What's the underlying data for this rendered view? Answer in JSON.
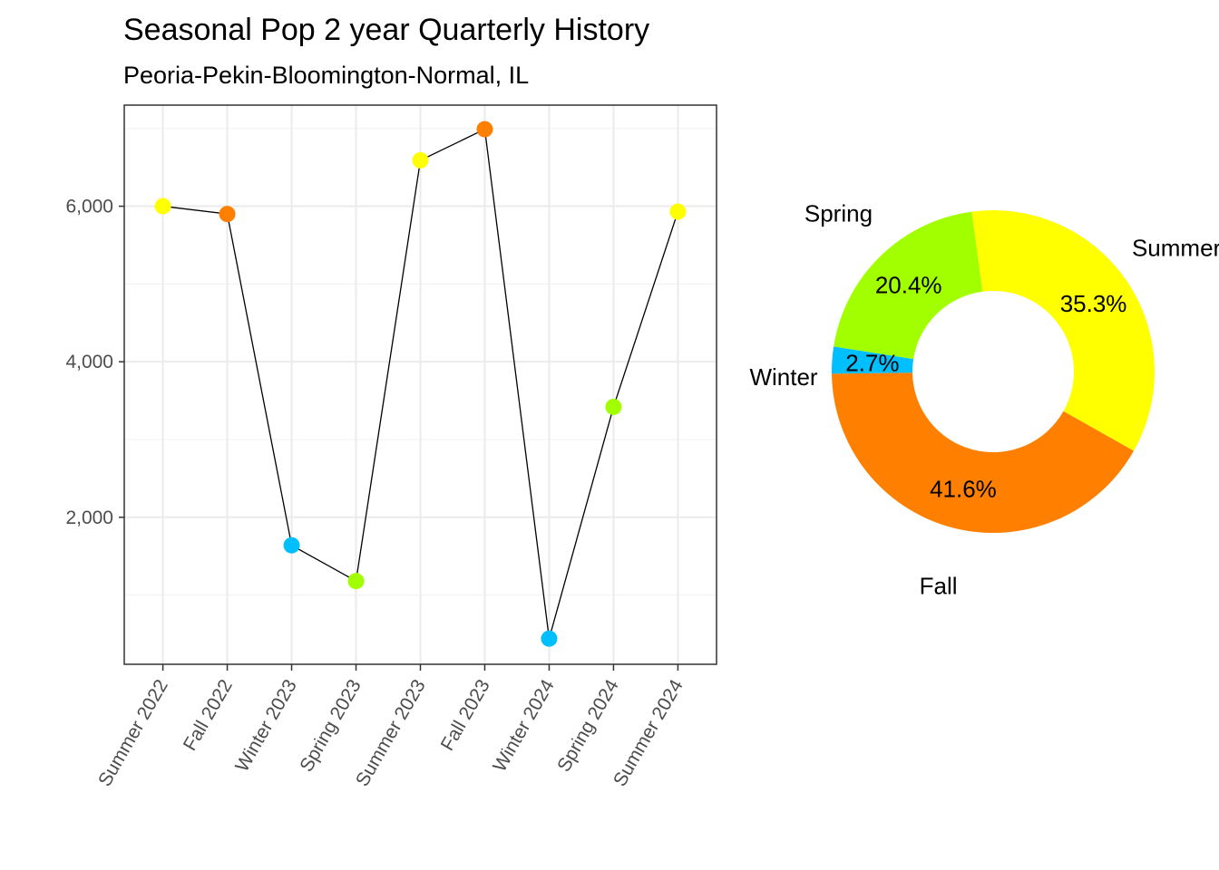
{
  "chart_data": [
    {
      "type": "line",
      "title": "Seasonal Pop 2 year Quarterly History",
      "subtitle": "Peoria-Pekin-Bloomington-Normal, IL",
      "xlabel": "",
      "ylabel": "",
      "categories": [
        "Summer 2022",
        "Fall 2022",
        "Winter 2023",
        "Spring 2023",
        "Summer 2023",
        "Fall 2023",
        "Winter 2024",
        "Spring 2024",
        "Summer 2024"
      ],
      "values": [
        6000,
        5900,
        1640,
        1180,
        6590,
        6990,
        440,
        3420,
        5930
      ],
      "point_seasons": [
        "Summer",
        "Fall",
        "Winter",
        "Spring",
        "Summer",
        "Fall",
        "Winter",
        "Spring",
        "Summer"
      ],
      "yticks": [
        2000,
        4000,
        6000
      ],
      "ytick_labels": [
        "2,000",
        "4,000",
        "6,000"
      ],
      "ylim": [
        110,
        7300
      ],
      "line_color": "#000000",
      "grid": true
    },
    {
      "type": "pie",
      "style": "donut",
      "slices": [
        {
          "label": "Summer",
          "value": 35.3,
          "pct_label": "35.3%"
        },
        {
          "label": "Fall",
          "value": 41.6,
          "pct_label": "41.6%"
        },
        {
          "label": "Winter",
          "value": 2.7,
          "pct_label": "2.7%"
        },
        {
          "label": "Spring",
          "value": 20.4,
          "pct_label": "20.4%"
        }
      ]
    }
  ],
  "season_colors": {
    "Summer": "#FFFF00",
    "Fall": "#FF7F00",
    "Winter": "#00BFFF",
    "Spring": "#A2FF00"
  }
}
